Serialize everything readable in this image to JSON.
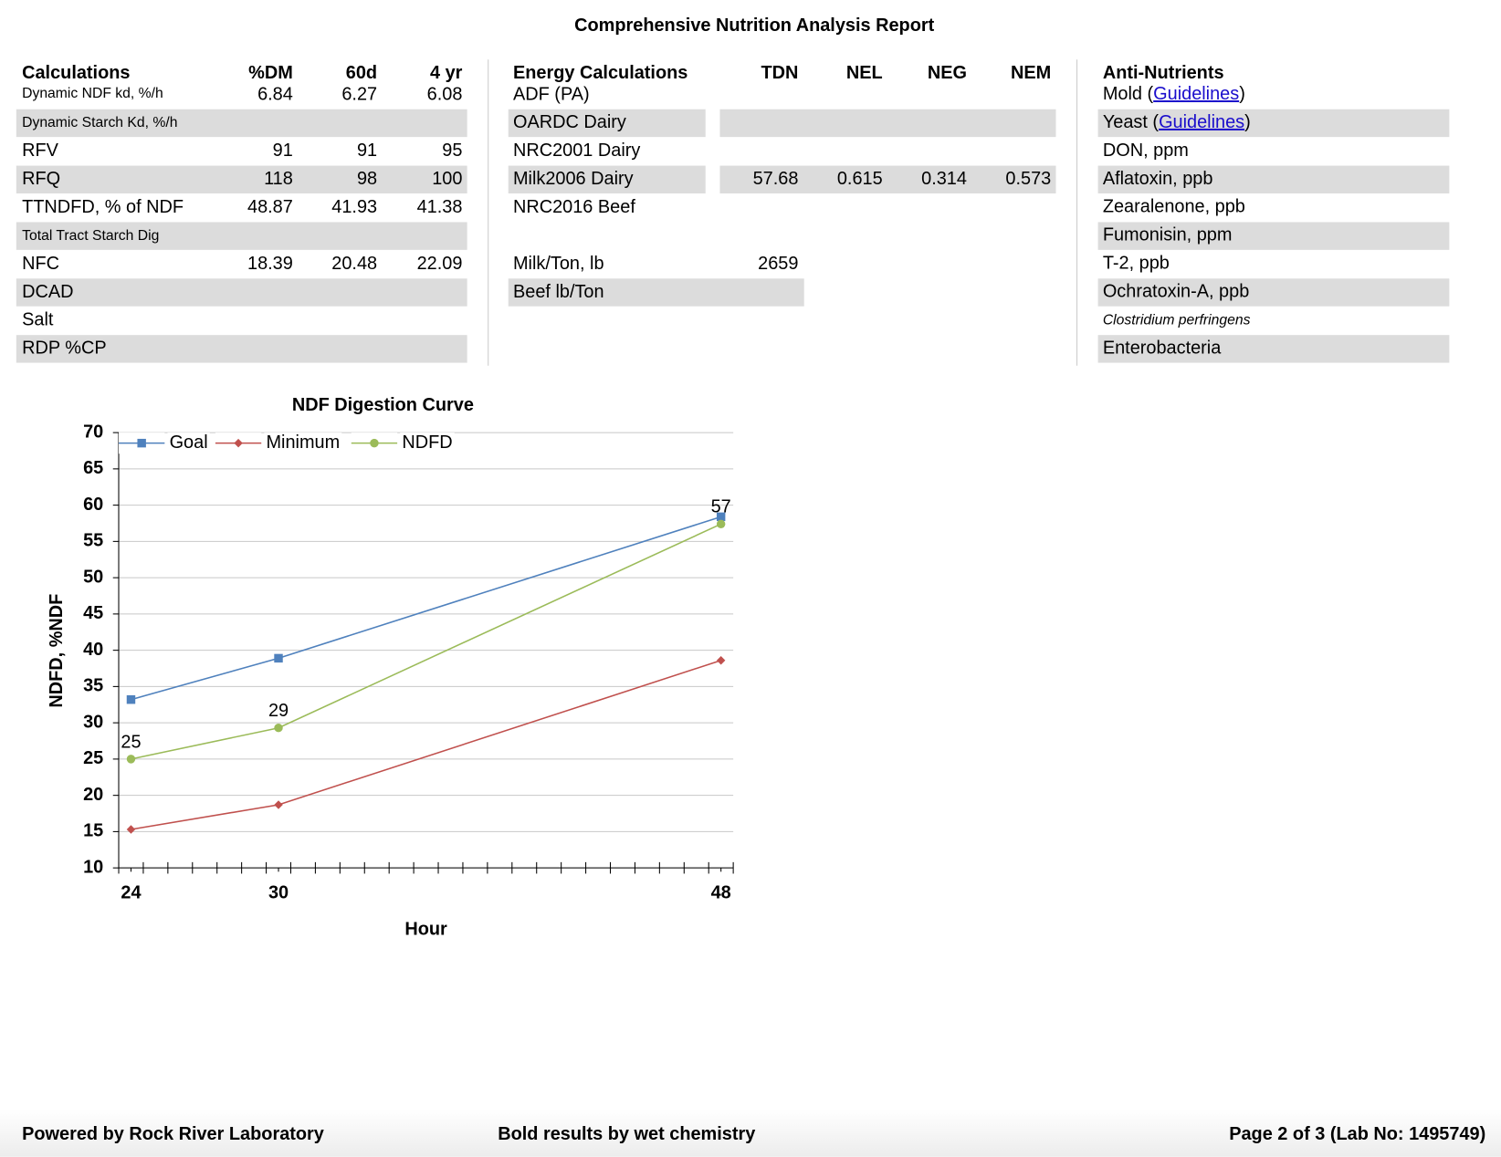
{
  "header": {
    "title": "Comprehensive Nutrition Analysis Report"
  },
  "calculations": {
    "columns": [
      "Calculations",
      "%DM",
      "60d",
      "4 yr"
    ],
    "rows": [
      [
        "Dynamic NDF kd, %/h",
        "6.84",
        "6.27",
        "6.08"
      ],
      [
        "Dynamic Starch Kd, %/h",
        null,
        null,
        null
      ],
      [
        "RFV",
        "91",
        "91",
        "95"
      ],
      [
        "RFQ",
        "118",
        "98",
        "100"
      ],
      [
        "TTNDFD, % of NDF",
        "48.87",
        "41.93",
        "41.38"
      ],
      [
        "Total Tract Starch Dig",
        null,
        null,
        null
      ],
      [
        "NFC",
        "18.39",
        "20.48",
        "22.09"
      ],
      [
        "DCAD",
        null,
        null,
        null
      ],
      [
        "Salt",
        null,
        null,
        null
      ],
      [
        "RDP %CP",
        null,
        null,
        null
      ]
    ]
  },
  "energy": {
    "columns": [
      "Energy Calculations",
      "TDN",
      "NEL",
      "NEG",
      "NEM"
    ],
    "rows": [
      [
        "ADF (PA)",
        null,
        null,
        null,
        null
      ],
      [
        "OARDC Dairy",
        null,
        null,
        null,
        null
      ],
      [
        "NRC2001 Dairy",
        null,
        null,
        null,
        null
      ],
      [
        "Milk2006 Dairy",
        "57.68",
        "0.615",
        "0.314",
        "0.573"
      ],
      [
        "NRC2016 Beef",
        null,
        null,
        null,
        null
      ]
    ],
    "yield_rows": [
      [
        "Milk/Ton, lb",
        "2659"
      ],
      [
        "Beef lb/Ton",
        null
      ]
    ]
  },
  "anti_nutrients": {
    "title": "Anti-Nutrients",
    "rows": [
      {
        "text": "Mold (",
        "link": "Guidelines",
        "after": ")"
      },
      {
        "text": "Yeast (",
        "link": "Guidelines",
        "after": ")"
      },
      {
        "text": "DON, ppm"
      },
      {
        "text": "Aflatoxin, ppb"
      },
      {
        "text": "Zearalenone, ppb"
      },
      {
        "text": "Fumonisin, ppm"
      },
      {
        "text": "T-2, ppb"
      },
      {
        "text": "Ochratoxin-A, ppb"
      },
      {
        "text": "Clostridium perfringens"
      },
      {
        "text": "Enterobacteria"
      }
    ]
  },
  "chart_data": {
    "type": "line",
    "title": "NDF Digestion Curve",
    "x_label": "Hour",
    "y_label": "NDFD, %NDF",
    "x": [
      24,
      30,
      48
    ],
    "xlim": [
      23.5,
      48.5
    ],
    "xticks": [
      24,
      30,
      48
    ],
    "ylim": [
      10,
      70
    ],
    "yticks": [
      10,
      15,
      20,
      25,
      30,
      35,
      40,
      45,
      50,
      55,
      60,
      65,
      70
    ],
    "grid": true,
    "legend": "top",
    "series": [
      {
        "name": "Goal",
        "color": "#4f81bd",
        "marker": "square",
        "values": [
          33.2,
          38.9,
          58.4
        ]
      },
      {
        "name": "Minimum",
        "color": "#c0504d",
        "marker": "diamond",
        "values": [
          15.3,
          18.7,
          38.6
        ]
      },
      {
        "name": "NDFD",
        "color": "#9bbb59",
        "marker": "circle",
        "values": [
          25.0,
          29.3,
          57.4
        ],
        "value_labels": [
          "25",
          "29",
          "57"
        ]
      }
    ]
  },
  "footer": {
    "left": "Powered by Rock River Laboratory",
    "center": "Bold results by wet chemistry",
    "right": "Page 2 of 3 (Lab No: 1495749)"
  }
}
